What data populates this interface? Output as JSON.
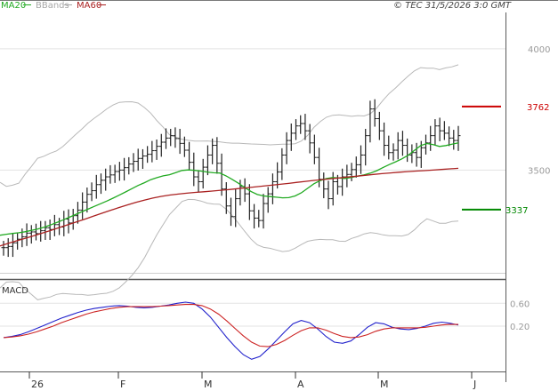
{
  "header": {
    "legend": [
      {
        "label": "MA20",
        "color": "#22aa22"
      },
      {
        "label": "BBands",
        "color": "#a8a8a8"
      },
      {
        "label": "MA60",
        "color": "#aa2222"
      }
    ],
    "copyright": "© TEC 31/5/2026 3:0 GMT"
  },
  "chart_data": [
    {
      "type": "ohlc",
      "title": "",
      "ylim": [
        3080,
        4150
      ],
      "y_ticks": [
        "4000",
        "3500"
      ],
      "x_ticks": [
        "26",
        "F",
        "M",
        "A",
        "M",
        "J"
      ],
      "grid": "horizontal",
      "levels": [
        {
          "label": "3762",
          "value": 3762,
          "color": "#cc0000"
        },
        {
          "label": "3337",
          "value": 3337,
          "color": "#008800"
        }
      ],
      "closes": [
        3180,
        3185,
        3200,
        3215,
        3225,
        3240,
        3245,
        3238,
        3250,
        3262,
        3255,
        3275,
        3265,
        3298,
        3282,
        3312,
        3335,
        3368,
        3400,
        3415,
        3440,
        3458,
        3472,
        3480,
        3494,
        3500,
        3510,
        3525,
        3536,
        3548,
        3558,
        3565,
        3580,
        3598,
        3615,
        3632,
        3642,
        3630,
        3610,
        3582,
        3532,
        3472,
        3452,
        3512,
        3562,
        3602,
        3528,
        3422,
        3352,
        3308,
        3382,
        3432,
        3402,
        3332,
        3302,
        3292,
        3362,
        3402,
        3452,
        3492,
        3562,
        3622,
        3652,
        3682,
        3692,
        3662,
        3612,
        3552,
        3462,
        3422,
        3382,
        3452,
        3432,
        3472,
        3482,
        3502,
        3522,
        3562,
        3642,
        3752,
        3712,
        3662,
        3602,
        3572,
        3582,
        3622,
        3602,
        3562,
        3572,
        3552,
        3592,
        3612,
        3642,
        3682,
        3662,
        3652,
        3632,
        3622,
        3642
      ],
      "series": [
        {
          "name": "MA20",
          "color": "#22aa22",
          "values": [
            3231.5,
            3235.4,
            3238.7,
            3241.7,
            3245.7,
            3251.2,
            3256.8,
            3264.2,
            3273.0,
            3283.3,
            3293.8,
            3305.1,
            3316.5,
            3327.6,
            3338.8,
            3349.9,
            3361.0,
            3372.2,
            3384.2,
            3396.6,
            3409.8,
            3423.4,
            3436.6,
            3448.0,
            3460.5,
            3468.9,
            3476.2,
            3481.0,
            3489.6,
            3498.6,
            3500.8,
            3499.0,
            3495.9,
            3492.0,
            3489.1,
            3487.7,
            3476.1,
            3461.5,
            3445.5,
            3427.9,
            3411.3,
            3399.3,
            3393.4,
            3390.8,
            3388.0,
            3385.5,
            3386.5,
            3393.3,
            3406.2,
            3424.7,
            3443.6,
            3456.8,
            3465.2,
            3469.3,
            3467.4,
            3465.4,
            3469.8,
            3475.4,
            3480.0,
            3487.5,
            3497.5,
            3510.2,
            3522.7,
            3534.1,
            3546.0,
            3561.0,
            3581.2,
            3601.1,
            3609.6,
            3605.1,
            3597.3,
            3601.2,
            3606.6,
            3612.1
          ]
        },
        {
          "name": "BBands",
          "color": "#a8a8a8",
          "values": [
            3449.4,
            3433.0,
            3437.6,
            3446.1,
            3482.6,
            3515.0,
            3548.7,
            3557.0,
            3569.4,
            3579.2,
            3596.5,
            3620.8,
            3645.8,
            3668.1,
            3693.5,
            3713.7,
            3732.2,
            3752.2,
            3768.2,
            3779.0,
            3781.2,
            3781.6,
            3776.1,
            3758.0,
            3734.9,
            3703.4,
            3676.7,
            3645.3,
            3635.6,
            3626.7,
            3622.7,
            3619.8,
            3619.3,
            3620.2,
            3618.4,
            3616.5,
            3612.8,
            3611.0,
            3610.8,
            3609.2,
            3607.8,
            3607.1,
            3605.8,
            3604.1,
            3605.4,
            3607.0,
            3606.6,
            3608.8,
            3619.6,
            3642.9,
            3675.7,
            3699.5,
            3717.9,
            3725.9,
            3727.9,
            3724.8,
            3721.5,
            3724.6,
            3723.2,
            3732.5,
            3755.8,
            3787.6,
            3816.0,
            3838.6,
            3863.9,
            3887.6,
            3909.0,
            3922.5,
            3920.2,
            3920.1,
            3913.9,
            3921.5,
            3925.6,
            3934.2
          ]
        },
        {
          "name": "MA60",
          "color": "#aa2222",
          "values": [
            3187.1,
            3198.4,
            3208.6,
            3218.9,
            3229.3,
            3240.2,
            3251.4,
            3263.1,
            3274.7,
            3286.3,
            3297.8,
            3309.8,
            3321.7,
            3333.7,
            3345.2,
            3356.4,
            3366.7,
            3376.1,
            3384.4,
            3391.4,
            3396.9,
            3401.0,
            3404.6,
            3407.8,
            3410.7,
            3413.6,
            3416.6,
            3419.6,
            3423.3,
            3426.8,
            3430.4,
            3434.0,
            3437.6,
            3441.3,
            3445.1,
            3449.3,
            3453.3,
            3457.3,
            3460.8,
            3464.4,
            3467.7,
            3471.2,
            3474.8,
            3478.4,
            3481.8,
            3485.1,
            3488.2,
            3491.0,
            3493.6,
            3495.8,
            3497.9,
            3500.1,
            3502.5,
            3505.0,
            3507.4
          ]
        }
      ]
    },
    {
      "type": "line",
      "title": "MACD",
      "ylim": [
        -0.5,
        0.9
      ],
      "y_ticks": [
        "0.60",
        "0.20"
      ],
      "series": [
        {
          "name": "MACD",
          "color": "#2222cc",
          "values": [
            0.0,
            0.02,
            0.05,
            0.1,
            0.16,
            0.22,
            0.28,
            0.34,
            0.39,
            0.44,
            0.48,
            0.51,
            0.53,
            0.55,
            0.56,
            0.55,
            0.53,
            0.52,
            0.53,
            0.55,
            0.57,
            0.6,
            0.62,
            0.6,
            0.5,
            0.36,
            0.18,
            0.0,
            -0.16,
            -0.3,
            -0.38,
            -0.33,
            -0.2,
            -0.05,
            0.1,
            0.24,
            0.3,
            0.26,
            0.15,
            0.02,
            -0.08,
            -0.1,
            -0.06,
            0.05,
            0.18,
            0.26,
            0.24,
            0.18,
            0.15,
            0.14,
            0.16,
            0.2,
            0.25,
            0.27,
            0.25,
            0.22
          ]
        },
        {
          "name": "Signal",
          "color": "#cc2222",
          "values": [
            0.0,
            0.01,
            0.03,
            0.06,
            0.1,
            0.15,
            0.2,
            0.26,
            0.31,
            0.36,
            0.41,
            0.45,
            0.48,
            0.51,
            0.53,
            0.54,
            0.54,
            0.54,
            0.54,
            0.55,
            0.56,
            0.57,
            0.58,
            0.58,
            0.56,
            0.5,
            0.41,
            0.29,
            0.16,
            0.03,
            -0.08,
            -0.15,
            -0.16,
            -0.12,
            -0.05,
            0.04,
            0.12,
            0.17,
            0.17,
            0.13,
            0.07,
            0.02,
            -0.0,
            0.01,
            0.05,
            0.11,
            0.15,
            0.17,
            0.17,
            0.17,
            0.17,
            0.18,
            0.2,
            0.22,
            0.23,
            0.23
          ]
        }
      ]
    }
  ]
}
